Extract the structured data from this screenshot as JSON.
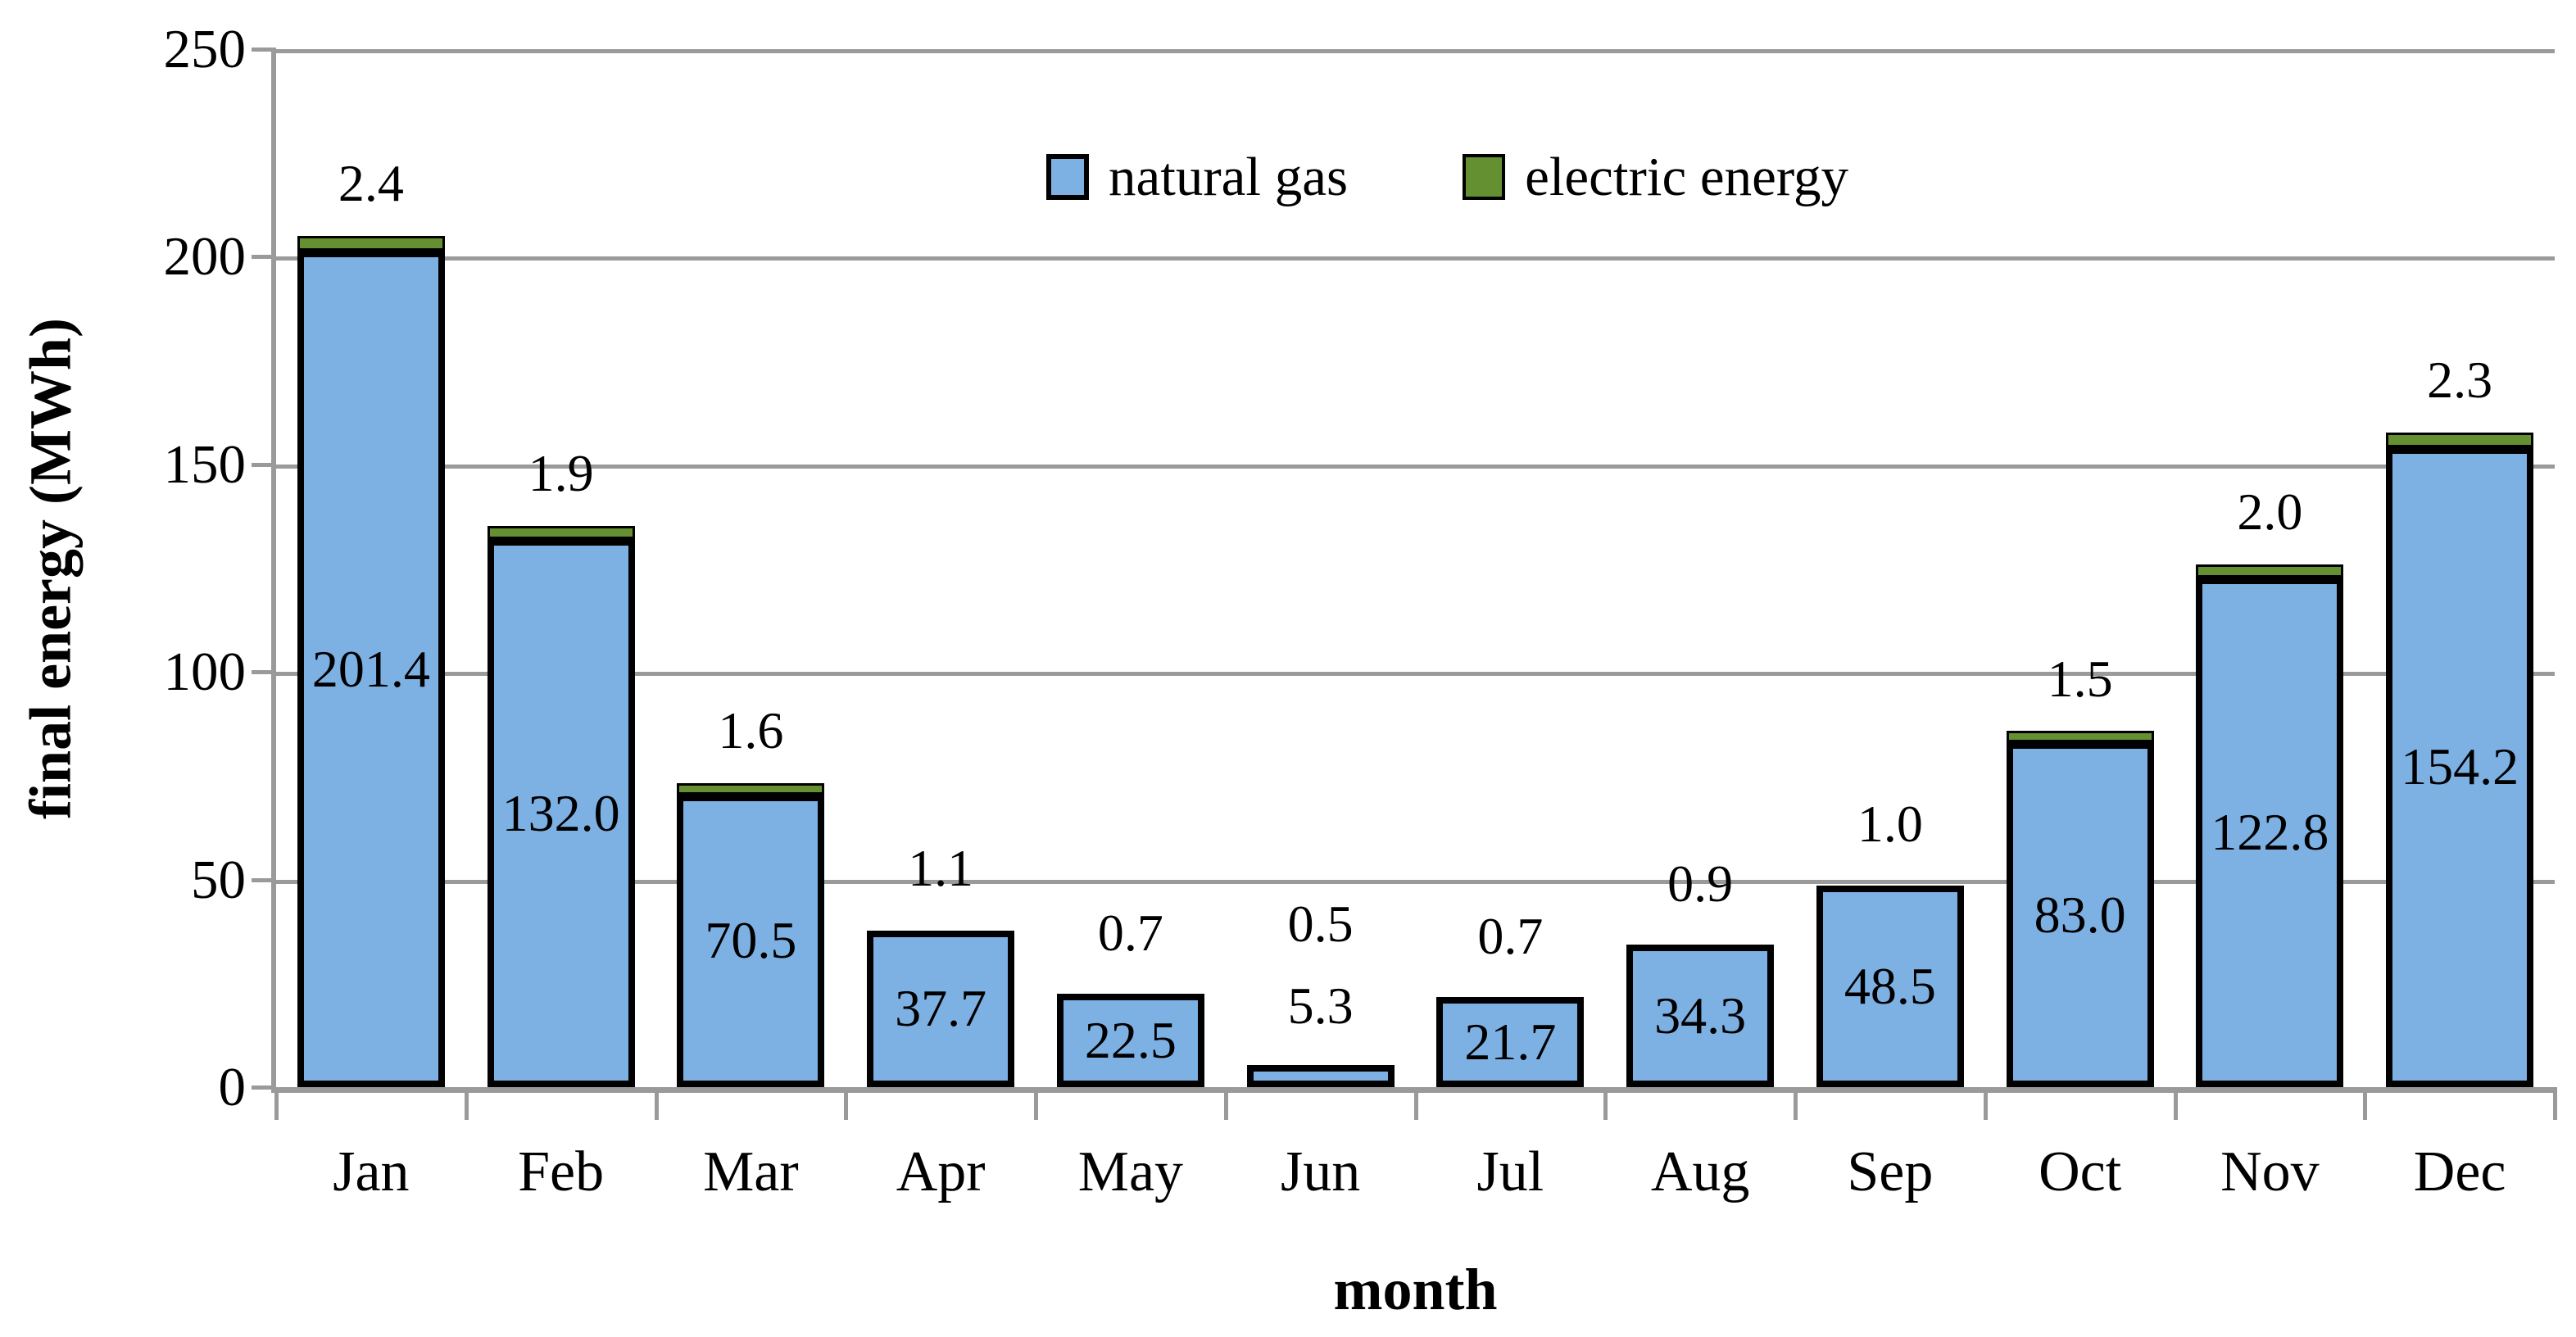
{
  "chart_data": {
    "type": "bar",
    "stacked": true,
    "title": "",
    "xlabel": "month",
    "ylabel": "final energy (MWh)",
    "ylim": [
      0,
      250
    ],
    "yticks": [
      0,
      50,
      100,
      150,
      200,
      250
    ],
    "grid": true,
    "legend_position": "top-center-inside",
    "categories": [
      "Jan",
      "Feb",
      "Mar",
      "Apr",
      "May",
      "Jun",
      "Jul",
      "Aug",
      "Sep",
      "Oct",
      "Nov",
      "Dec"
    ],
    "series": [
      {
        "name": "natural gas",
        "color": "#7DB1E3",
        "values": [
          201.4,
          132.0,
          70.5,
          37.7,
          22.5,
          5.3,
          21.7,
          34.3,
          48.5,
          83.0,
          122.8,
          154.2
        ],
        "labels": [
          "201.4",
          "132.0",
          "70.5",
          "37.7",
          "22.5",
          "5.3",
          "21.7",
          "34.3",
          "48.5",
          "83.0",
          "122.8",
          "154.2"
        ]
      },
      {
        "name": "electric energy",
        "color": "#659031",
        "values": [
          2.4,
          1.9,
          1.6,
          1.1,
          0.7,
          0.5,
          0.7,
          0.9,
          1.0,
          1.5,
          2.0,
          2.3
        ],
        "labels": [
          "2.4",
          "1.9",
          "1.6",
          "1.1",
          "0.7",
          "0.5",
          "0.7",
          "0.9",
          "1.0",
          "1.5",
          "2.0",
          "2.3"
        ]
      }
    ],
    "colors": {
      "gridline": "#9A9A9A",
      "axis": "#9A9A9A",
      "bar_border": "#000000",
      "text": "#000000",
      "background": "#FFFFFF"
    }
  }
}
